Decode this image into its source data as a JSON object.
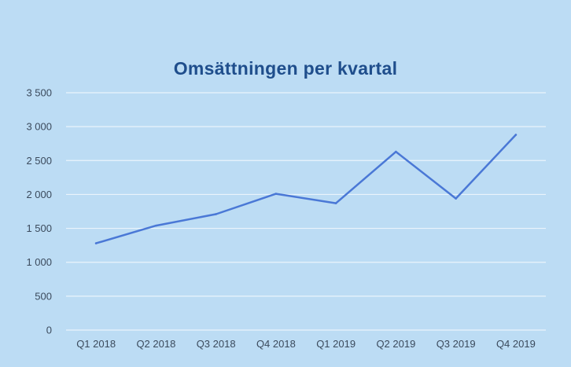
{
  "chart_data": {
    "type": "line",
    "title": "Omsättningen per kvartal",
    "categories": [
      "Q1 2018",
      "Q2 2018",
      "Q3 2018",
      "Q4 2018",
      "Q1 2019",
      "Q2 2019",
      "Q3 2019",
      "Q4 2019"
    ],
    "series": [
      {
        "values": [
          1280,
          1540,
          1710,
          2010,
          1870,
          2630,
          1940,
          2880
        ]
      }
    ],
    "xlabel": "",
    "ylabel": "",
    "ylim": [
      0,
      3500
    ],
    "yticks": [
      0,
      500,
      1000,
      1500,
      2000,
      2500,
      3000,
      3500
    ],
    "ytick_labels": [
      "0",
      "500",
      "1 000",
      "1 500",
      "2 000",
      "2 500",
      "3 000",
      "3 500"
    ],
    "grid": true,
    "colors": {
      "background": "#bcdcf4",
      "line": "#4a78d6",
      "grid": "#eaf4fc",
      "title": "#1f4e8c"
    }
  }
}
